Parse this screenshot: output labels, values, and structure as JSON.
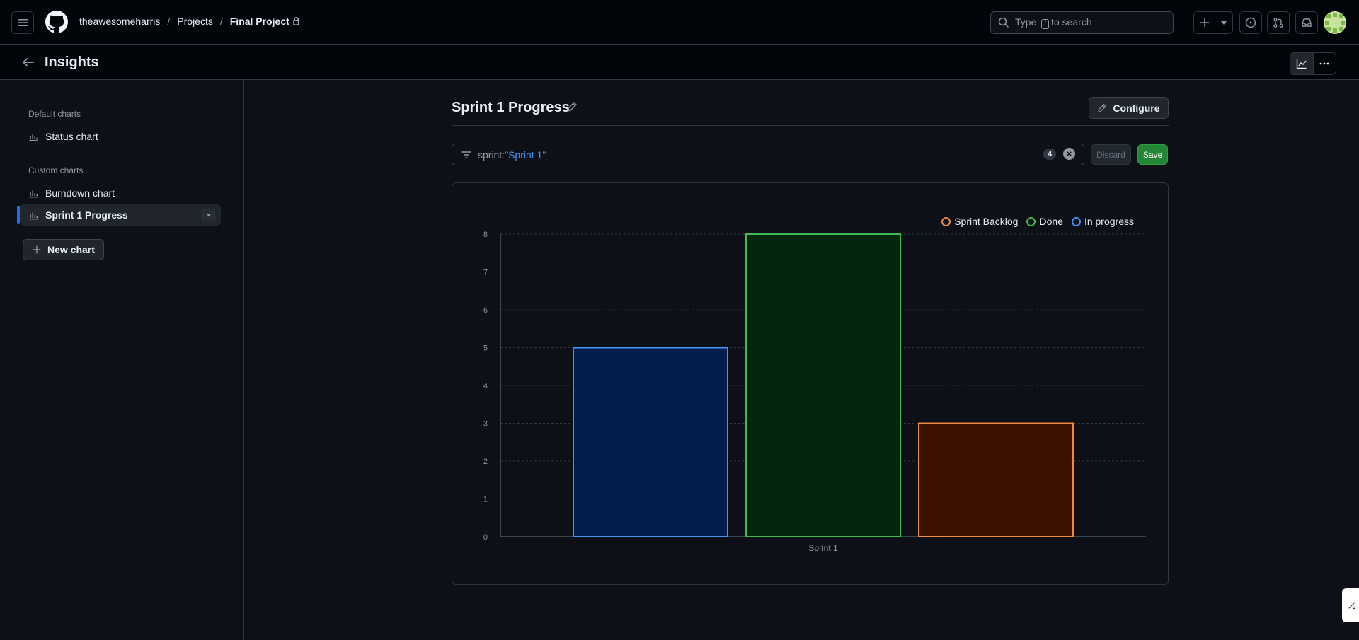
{
  "header": {
    "breadcrumbs": [
      "theawesomeharris",
      "Projects",
      "Final Project"
    ],
    "search_prefix": "Type",
    "search_key": "/",
    "search_suffix": "to search"
  },
  "subheader": {
    "title": "Insights"
  },
  "sidebar": {
    "default_heading": "Default charts",
    "default_items": [
      {
        "label": "Status chart"
      }
    ],
    "custom_heading": "Custom charts",
    "custom_items": [
      {
        "label": "Burndown chart"
      },
      {
        "label": "Sprint 1 Progress",
        "active": true
      }
    ],
    "new_chart_label": "New chart"
  },
  "main": {
    "title": "Sprint 1 Progress",
    "configure_label": "Configure",
    "filter": {
      "key": "sprint:",
      "value": "\"Sprint 1\"",
      "count": "4"
    },
    "discard_label": "Discard",
    "save_label": "Save"
  },
  "chart_data": {
    "type": "bar",
    "categories": [
      "Sprint 1"
    ],
    "series": [
      {
        "name": "In progress",
        "values": [
          5
        ],
        "color": "#4493f8",
        "fill": "#051d4d"
      },
      {
        "name": "Done",
        "values": [
          8
        ],
        "color": "#3fb950",
        "fill": "#04260f"
      },
      {
        "name": "Sprint Backlog",
        "values": [
          3
        ],
        "color": "#f0883e",
        "fill": "#3d1300"
      }
    ],
    "legend_order": [
      "Sprint Backlog",
      "Done",
      "In progress"
    ],
    "legend_position": "top-right",
    "ylim": [
      0,
      8
    ],
    "yticks": [
      0,
      1,
      2,
      3,
      4,
      5,
      6,
      7,
      8
    ],
    "grid": true,
    "title": "",
    "xlabel": "",
    "ylabel": ""
  }
}
